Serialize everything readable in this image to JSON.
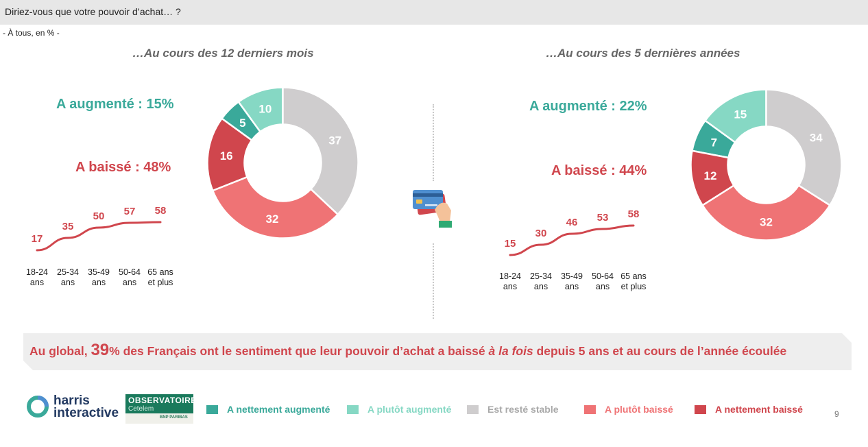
{
  "question": "Diriez-vous que votre pouvoir d’achat… ?",
  "base": "- À tous, en % -",
  "left": {
    "subtitle": "…Au cours des 12 derniers mois",
    "increased": "A augmenté : 15%",
    "decreased": "A baissé : 48%",
    "age_labels": [
      [
        "18-24",
        "ans"
      ],
      [
        "25-34",
        "ans"
      ],
      [
        "35-49",
        "ans"
      ],
      [
        "50-64",
        "ans"
      ],
      [
        "65 ans",
        "et plus"
      ]
    ]
  },
  "right": {
    "subtitle": "…Au cours des 5 dernières années",
    "increased": "A augmenté : 22%",
    "decreased": "A baissé : 44%",
    "age_labels": [
      [
        "18-24",
        "ans"
      ],
      [
        "25-34",
        "ans"
      ],
      [
        "35-49",
        "ans"
      ],
      [
        "50-64",
        "ans"
      ],
      [
        "65 ans",
        "et plus"
      ]
    ]
  },
  "chart_data": [
    {
      "type": "pie",
      "title": "…Au cours des 12 derniers mois",
      "categories": [
        "A nettement augmenté",
        "A plutôt augmenté",
        "Est resté stable",
        "A plutôt baissé",
        "A nettement baissé"
      ],
      "values": [
        5,
        10,
        37,
        32,
        16
      ],
      "colors": [
        "#3aa99a",
        "#86d8c4",
        "#cfcdce",
        "#ef7375",
        "#d0464d"
      ]
    },
    {
      "type": "line",
      "title": "A baissé",
      "categories": [
        "18-24 ans",
        "25-34 ans",
        "35-49 ans",
        "50-64 ans",
        "65 ans et plus"
      ],
      "values": [
        17,
        35,
        50,
        57,
        58
      ],
      "color": "#d0464d"
    },
    {
      "type": "pie",
      "title": "…Au cours des 5 dernières années",
      "categories": [
        "A nettement augmenté",
        "A plutôt augmenté",
        "Est resté stable",
        "A plutôt baissé",
        "A nettement baissé"
      ],
      "values": [
        7,
        15,
        34,
        32,
        12
      ],
      "colors": [
        "#3aa99a",
        "#86d8c4",
        "#cfcdce",
        "#ef7375",
        "#d0464d"
      ]
    },
    {
      "type": "line",
      "title": "A baissé",
      "categories": [
        "18-24 ans",
        "25-34 ans",
        "35-49 ans",
        "50-64 ans",
        "65 ans et plus"
      ],
      "values": [
        15,
        30,
        46,
        53,
        58
      ],
      "color": "#d0464d"
    }
  ],
  "banner": {
    "prefix": "Au global, ",
    "number": "39",
    "middle": "% des Français ont le sentiment que leur pouvoir d’achat a baissé ",
    "italic": "à la fois",
    "suffix": " depuis 5 ans et au cours de l’année écoulée"
  },
  "legend": [
    {
      "label": "A nettement augmenté",
      "color": "#3aa99a",
      "text_color": "#3aa99a"
    },
    {
      "label": "A plutôt augmenté",
      "color": "#86d8c4",
      "text_color": "#86d8c4"
    },
    {
      "label": "Est resté stable",
      "color": "#cfcdce",
      "text_color": "#a9a9a9"
    },
    {
      "label": "A plutôt baissé",
      "color": "#ef7375",
      "text_color": "#ef7375"
    },
    {
      "label": "A nettement baissé",
      "color": "#d0464d",
      "text_color": "#d0464d"
    }
  ],
  "logos": {
    "harris_line1": "harris",
    "harris_line2": "interactive",
    "obs_title": "OBSERVATOIRE",
    "obs_sub": "Cetelem",
    "obs_bank": "BNP PARIBAS"
  },
  "icons": {
    "center": "credit-card-hand-icon"
  },
  "page_number": "9"
}
